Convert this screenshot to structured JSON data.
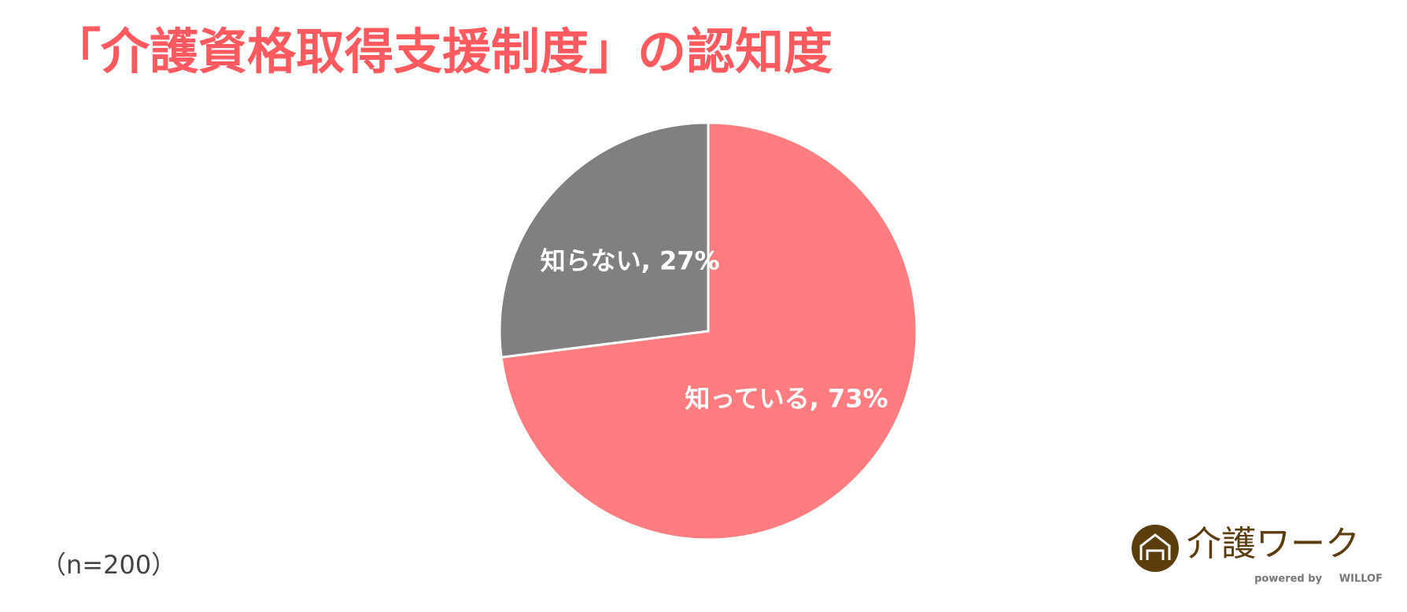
{
  "chart_data": {
    "type": "pie",
    "title": "「介護資格取得支援制度」の認知度",
    "categories": [
      "知っている",
      "知らない"
    ],
    "values": [
      73,
      27
    ],
    "value_labels": [
      "知っている, 73%",
      "知らない, 27%"
    ],
    "colors": [
      "#ff7c80",
      "#808080"
    ],
    "note": "（n=200）"
  },
  "logo": {
    "name": "介護ワーク",
    "tagline": "powered by",
    "brand": "WILLOF"
  }
}
